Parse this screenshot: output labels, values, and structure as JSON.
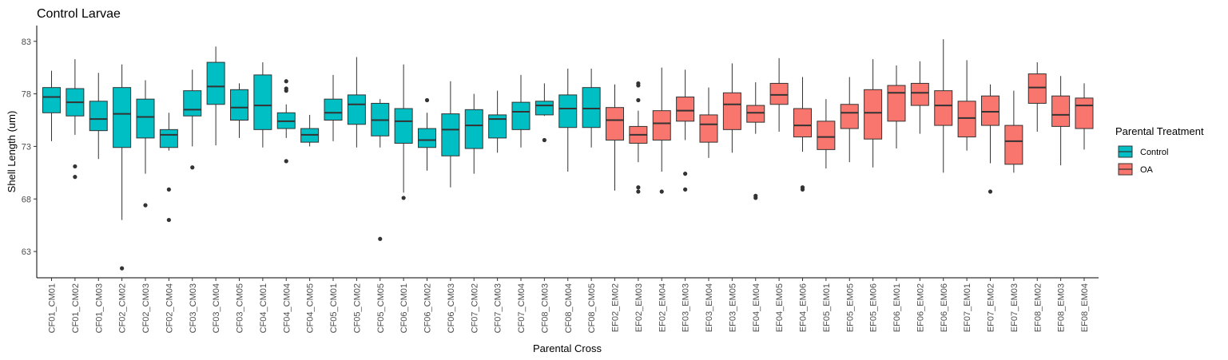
{
  "chart_data": {
    "type": "boxplot",
    "title": "Control Larvae",
    "xlabel": "Parental Cross",
    "ylabel": "Shell Length (um)",
    "ylim": [
      60.5,
      84.5
    ],
    "yticks": [
      63,
      68,
      73,
      78,
      83
    ],
    "grid": false,
    "legend": {
      "title": "Parental Treatment",
      "position": "right",
      "entries": [
        {
          "label": "Control",
          "color": "#00BFC4"
        },
        {
          "label": "OA",
          "color": "#F8766D"
        }
      ]
    },
    "boxes": [
      {
        "label": "CF01_CM01",
        "group": "Control",
        "min": 73.5,
        "q1": 76.2,
        "median": 77.7,
        "q3": 78.6,
        "max": 80.2,
        "outliers": []
      },
      {
        "label": "CF01_CM02",
        "group": "Control",
        "min": 74.1,
        "q1": 75.9,
        "median": 77.2,
        "q3": 78.5,
        "max": 81.3,
        "outliers": [
          71.1,
          70.1
        ]
      },
      {
        "label": "CF01_CM03",
        "group": "Control",
        "min": 71.8,
        "q1": 74.5,
        "median": 75.6,
        "q3": 77.3,
        "max": 80.0,
        "outliers": []
      },
      {
        "label": "CF02_CM02",
        "group": "Control",
        "min": 66.0,
        "q1": 72.9,
        "median": 76.1,
        "q3": 78.6,
        "max": 80.8,
        "outliers": [
          61.4
        ]
      },
      {
        "label": "CF02_CM03",
        "group": "Control",
        "min": 70.4,
        "q1": 73.8,
        "median": 75.8,
        "q3": 77.5,
        "max": 79.3,
        "outliers": [
          67.4
        ]
      },
      {
        "label": "CF02_CM04",
        "group": "Control",
        "min": 72.6,
        "q1": 72.9,
        "median": 74.1,
        "q3": 74.6,
        "max": 76.2,
        "outliers": [
          68.9,
          66.0
        ]
      },
      {
        "label": "CF03_CM03",
        "group": "Control",
        "min": 73.0,
        "q1": 75.9,
        "median": 76.5,
        "q3": 78.3,
        "max": 80.3,
        "outliers": [
          71.0
        ]
      },
      {
        "label": "CF03_CM04",
        "group": "Control",
        "min": 73.1,
        "q1": 77.0,
        "median": 78.7,
        "q3": 81.0,
        "max": 82.5,
        "outliers": []
      },
      {
        "label": "CF03_CM05",
        "group": "Control",
        "min": 73.8,
        "q1": 75.5,
        "median": 76.7,
        "q3": 78.4,
        "max": 79.0,
        "outliers": []
      },
      {
        "label": "CF04_CM01",
        "group": "Control",
        "min": 72.9,
        "q1": 74.6,
        "median": 76.9,
        "q3": 79.8,
        "max": 81.0,
        "outliers": []
      },
      {
        "label": "CF04_CM04",
        "group": "Control",
        "min": 73.8,
        "q1": 74.7,
        "median": 75.4,
        "q3": 76.2,
        "max": 77.0,
        "outliers": [
          79.2,
          78.5,
          78.3,
          71.6
        ]
      },
      {
        "label": "CF04_CM05",
        "group": "Control",
        "min": 73.0,
        "q1": 73.4,
        "median": 74.1,
        "q3": 74.7,
        "max": 76.0,
        "outliers": []
      },
      {
        "label": "CF05_CM01",
        "group": "Control",
        "min": 73.5,
        "q1": 75.5,
        "median": 76.2,
        "q3": 77.5,
        "max": 79.8,
        "outliers": []
      },
      {
        "label": "CF05_CM02",
        "group": "Control",
        "min": 72.9,
        "q1": 75.1,
        "median": 77.0,
        "q3": 77.9,
        "max": 81.5,
        "outliers": []
      },
      {
        "label": "CF05_CM05",
        "group": "Control",
        "min": 72.9,
        "q1": 74.0,
        "median": 75.5,
        "q3": 77.1,
        "max": 77.5,
        "outliers": [
          64.2
        ]
      },
      {
        "label": "CF06_CM01",
        "group": "Control",
        "min": 68.6,
        "q1": 73.3,
        "median": 75.4,
        "q3": 76.6,
        "max": 80.8,
        "outliers": [
          68.1
        ]
      },
      {
        "label": "CF06_CM02",
        "group": "Control",
        "min": 70.7,
        "q1": 72.9,
        "median": 73.6,
        "q3": 74.7,
        "max": 76.2,
        "outliers": [
          77.4
        ]
      },
      {
        "label": "CF06_CM03",
        "group": "Control",
        "min": 69.1,
        "q1": 72.1,
        "median": 74.6,
        "q3": 76.1,
        "max": 79.2,
        "outliers": []
      },
      {
        "label": "CF07_CM02",
        "group": "Control",
        "min": 70.4,
        "q1": 72.8,
        "median": 75.0,
        "q3": 76.5,
        "max": 78.0,
        "outliers": []
      },
      {
        "label": "CF07_CM03",
        "group": "Control",
        "min": 72.4,
        "q1": 73.8,
        "median": 75.6,
        "q3": 76.0,
        "max": 78.3,
        "outliers": []
      },
      {
        "label": "CF07_CM04",
        "group": "Control",
        "min": 72.9,
        "q1": 74.6,
        "median": 76.3,
        "q3": 77.2,
        "max": 79.8,
        "outliers": []
      },
      {
        "label": "CF08_CM03",
        "group": "Control",
        "min": 75.9,
        "q1": 76.0,
        "median": 76.9,
        "q3": 77.3,
        "max": 79.0,
        "outliers": [
          73.6
        ]
      },
      {
        "label": "CF08_CM04",
        "group": "Control",
        "min": 70.6,
        "q1": 74.8,
        "median": 76.6,
        "q3": 77.9,
        "max": 80.4,
        "outliers": []
      },
      {
        "label": "CF08_CM05",
        "group": "Control",
        "min": 72.9,
        "q1": 74.8,
        "median": 76.6,
        "q3": 78.6,
        "max": 80.4,
        "outliers": []
      },
      {
        "label": "EF02_EM02",
        "group": "OA",
        "min": 68.8,
        "q1": 73.6,
        "median": 75.5,
        "q3": 76.7,
        "max": 78.9,
        "outliers": []
      },
      {
        "label": "EF02_EM03",
        "group": "OA",
        "min": 71.5,
        "q1": 73.3,
        "median": 74.1,
        "q3": 74.9,
        "max": 76.4,
        "outliers": [
          79.0,
          78.8,
          77.4,
          69.1,
          68.7
        ]
      },
      {
        "label": "EF02_EM04",
        "group": "OA",
        "min": 70.6,
        "q1": 73.6,
        "median": 75.2,
        "q3": 76.4,
        "max": 80.5,
        "outliers": [
          68.7
        ]
      },
      {
        "label": "EF03_EM03",
        "group": "OA",
        "min": 73.6,
        "q1": 75.4,
        "median": 76.4,
        "q3": 77.7,
        "max": 80.3,
        "outliers": [
          70.4,
          68.9
        ]
      },
      {
        "label": "EF03_EM04",
        "group": "OA",
        "min": 71.9,
        "q1": 73.4,
        "median": 75.1,
        "q3": 76.0,
        "max": 78.6,
        "outliers": []
      },
      {
        "label": "EF03_EM05",
        "group": "OA",
        "min": 72.4,
        "q1": 74.6,
        "median": 77.0,
        "q3": 78.1,
        "max": 80.9,
        "outliers": []
      },
      {
        "label": "EF04_EM04",
        "group": "OA",
        "min": 74.2,
        "q1": 75.3,
        "median": 76.2,
        "q3": 76.9,
        "max": 79.1,
        "outliers": [
          68.3,
          68.1
        ]
      },
      {
        "label": "EF04_EM05",
        "group": "OA",
        "min": 74.4,
        "q1": 77.0,
        "median": 77.9,
        "q3": 79.0,
        "max": 81.4,
        "outliers": []
      },
      {
        "label": "EF04_EM06",
        "group": "OA",
        "min": 72.5,
        "q1": 73.9,
        "median": 75.0,
        "q3": 76.6,
        "max": 79.6,
        "outliers": [
          69.1,
          68.9
        ]
      },
      {
        "label": "EF05_EM01",
        "group": "OA",
        "min": 70.9,
        "q1": 72.7,
        "median": 73.9,
        "q3": 75.4,
        "max": 77.5,
        "outliers": []
      },
      {
        "label": "EF05_EM05",
        "group": "OA",
        "min": 71.5,
        "q1": 74.7,
        "median": 76.2,
        "q3": 77.0,
        "max": 79.6,
        "outliers": []
      },
      {
        "label": "EF05_EM06",
        "group": "OA",
        "min": 71.0,
        "q1": 73.7,
        "median": 76.2,
        "q3": 78.4,
        "max": 81.3,
        "outliers": []
      },
      {
        "label": "EF06_EM01",
        "group": "OA",
        "min": 72.8,
        "q1": 75.4,
        "median": 78.1,
        "q3": 78.8,
        "max": 80.7,
        "outliers": []
      },
      {
        "label": "EF06_EM02",
        "group": "OA",
        "min": 74.2,
        "q1": 76.9,
        "median": 78.1,
        "q3": 79.0,
        "max": 81.1,
        "outliers": []
      },
      {
        "label": "EF06_EM06",
        "group": "OA",
        "min": 70.5,
        "q1": 75.0,
        "median": 76.9,
        "q3": 78.3,
        "max": 83.2,
        "outliers": []
      },
      {
        "label": "EF07_EM01",
        "group": "OA",
        "min": 72.6,
        "q1": 73.9,
        "median": 75.7,
        "q3": 77.3,
        "max": 81.2,
        "outliers": []
      },
      {
        "label": "EF07_EM02",
        "group": "OA",
        "min": 71.4,
        "q1": 75.0,
        "median": 76.3,
        "q3": 77.8,
        "max": 78.9,
        "outliers": [
          68.7
        ]
      },
      {
        "label": "EF07_EM03",
        "group": "OA",
        "min": 70.5,
        "q1": 71.3,
        "median": 73.5,
        "q3": 75.0,
        "max": 78.3,
        "outliers": []
      },
      {
        "label": "EF08_EM02",
        "group": "OA",
        "min": 74.4,
        "q1": 77.1,
        "median": 78.6,
        "q3": 79.9,
        "max": 81.0,
        "outliers": []
      },
      {
        "label": "EF08_EM03",
        "group": "OA",
        "min": 71.2,
        "q1": 74.9,
        "median": 76.0,
        "q3": 77.8,
        "max": 79.7,
        "outliers": []
      },
      {
        "label": "EF08_EM04",
        "group": "OA",
        "min": 72.7,
        "q1": 74.7,
        "median": 76.9,
        "q3": 77.6,
        "max": 79.0,
        "outliers": []
      }
    ]
  }
}
